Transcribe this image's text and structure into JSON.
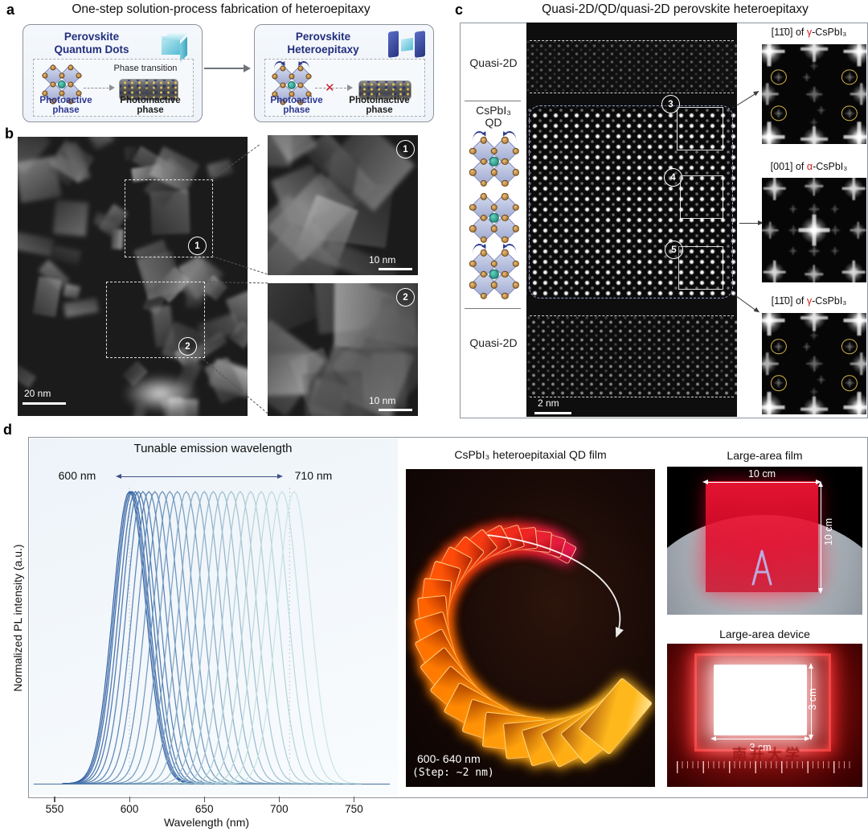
{
  "a": {
    "panel_label": "a",
    "title": "One-step solution-process fabrication of heteroepitaxy",
    "qd_box": {
      "name_line1": "Perovskite",
      "name_line2": "Quantum Dots",
      "phase_transition": "Phase transition",
      "photoactive_1": "Photoactive",
      "photoactive_2": "phase",
      "photoinactive_1": "Photoinactive",
      "photoinactive_2": "phase"
    },
    "hetero_box": {
      "name_line1": "Perovskite",
      "name_line2": "Heteroepitaxy",
      "photoactive_1": "Photoactive",
      "photoactive_2": "phase",
      "photoinactive_1": "Photoinactive",
      "photoinactive_2": "phase"
    }
  },
  "b": {
    "panel_label": "b",
    "scale_main": "20 nm",
    "scale_inset1": "10 nm",
    "scale_inset2": "10 nm",
    "marker_1": "1",
    "marker_2": "2"
  },
  "c": {
    "panel_label": "c",
    "title": "Quasi-2D/QD/quasi-2D perovskite heteroepitaxy",
    "layer_top": "Quasi-2D",
    "layer_mid_1": "CsPbI₃",
    "layer_mid_2": "QD",
    "layer_bottom": "Quasi-2D",
    "marker_3": "3",
    "marker_4": "4",
    "marker_5": "5",
    "scale_bar": "2 nm",
    "fft_1": {
      "pre": "[11̄0] of ",
      "phase": "γ",
      "post": "-CsPbI₃"
    },
    "fft_2": {
      "pre": "[001] of ",
      "phase": "α",
      "post": "-CsPbI₃"
    },
    "fft_3": {
      "pre": "[11̄0] of ",
      "phase": "γ",
      "post": "-CsPbI₃"
    }
  },
  "d": {
    "panel_label": "d",
    "qd_film": {
      "title": "CsPbI₃ heteroepitaxial QD film",
      "caption_1": "600- 640 nm",
      "caption_2": "(Step: ~2 nm)"
    },
    "large_film": {
      "title": "Large-area film",
      "width_label": "10 cm",
      "height_label": "10 cm"
    },
    "large_device": {
      "title": "Large-area device",
      "width_label": "3 cm",
      "height_label": "3 cm",
      "watermark": "南开大学"
    }
  },
  "chart_data": {
    "type": "line",
    "title": "Tunable emission wavelength",
    "xlabel": "Wavelength (nm)",
    "ylabel": "Normalized PL intensity (a.u.)",
    "x_ticks": [
      550,
      600,
      650,
      700,
      750
    ],
    "xlim": [
      535,
      775
    ],
    "ylim": [
      0,
      1.05
    ],
    "annotation_left": "600 nm",
    "annotation_right": "710 nm",
    "peak_range_nm": [
      600,
      710
    ],
    "series_peaks_nm": [
      600,
      601,
      602,
      604,
      606,
      609,
      613,
      617,
      622,
      627,
      632,
      638,
      644,
      650,
      656,
      662,
      668,
      674,
      681,
      688,
      695,
      702,
      710
    ],
    "fwhm_nm": 26,
    "normalized_peak": 1.0,
    "color_start": "#2a5a9f",
    "color_end": "#c9e5e1",
    "dotted_guides_nm": [
      600,
      707
    ],
    "grid": false,
    "legend": false
  }
}
